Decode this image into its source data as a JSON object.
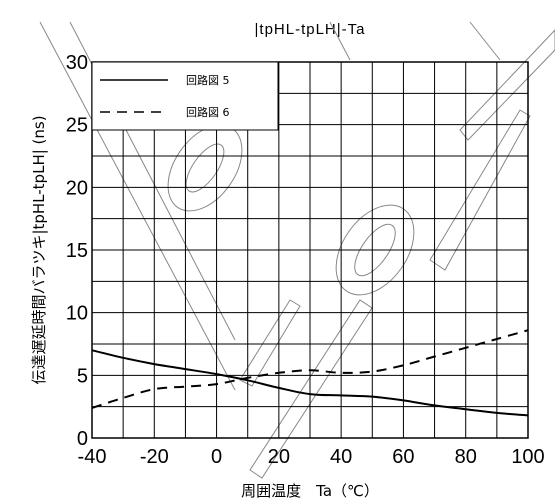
{
  "chart_data": {
    "type": "line",
    "title": "|tpHL-tpLH|-Ta",
    "xlabel": "周囲温度　Ta（℃）",
    "ylabel": "伝達遅延時間バラツキ|tpHL-tpLH| (ns)",
    "xlim": [
      -40,
      100
    ],
    "ylim": [
      0,
      30
    ],
    "x_ticks": [
      -40,
      -20,
      0,
      20,
      40,
      60,
      80,
      100
    ],
    "y_ticks": [
      0,
      5,
      10,
      15,
      20,
      25,
      30
    ],
    "x_tick_labels": [
      "-40",
      "-20",
      "0",
      "20",
      "40",
      "60",
      "80",
      "100"
    ],
    "y_tick_labels": [
      "0",
      "5",
      "10",
      "15",
      "20",
      "25",
      "30"
    ],
    "x_minor_step": 10,
    "y_minor_step": 2.5,
    "grid": true,
    "legend_position": "top-left",
    "series": [
      {
        "name": "回路図 5",
        "style": "solid",
        "x": [
          -40,
          -30,
          -20,
          -10,
          0,
          10,
          20,
          30,
          40,
          50,
          60,
          70,
          80,
          90,
          100
        ],
        "y": [
          7.0,
          6.4,
          5.9,
          5.5,
          5.1,
          4.6,
          4.0,
          3.5,
          3.4,
          3.3,
          3.0,
          2.6,
          2.3,
          2.0,
          1.8
        ]
      },
      {
        "name": "回路図 6",
        "style": "dashed",
        "x": [
          -40,
          -30,
          -20,
          -10,
          0,
          10,
          20,
          30,
          40,
          50,
          60,
          70,
          80,
          90,
          100
        ],
        "y": [
          2.4,
          3.2,
          3.9,
          4.1,
          4.3,
          4.8,
          5.2,
          5.4,
          5.2,
          5.3,
          5.8,
          6.5,
          7.2,
          7.9,
          8.6
        ]
      }
    ]
  }
}
